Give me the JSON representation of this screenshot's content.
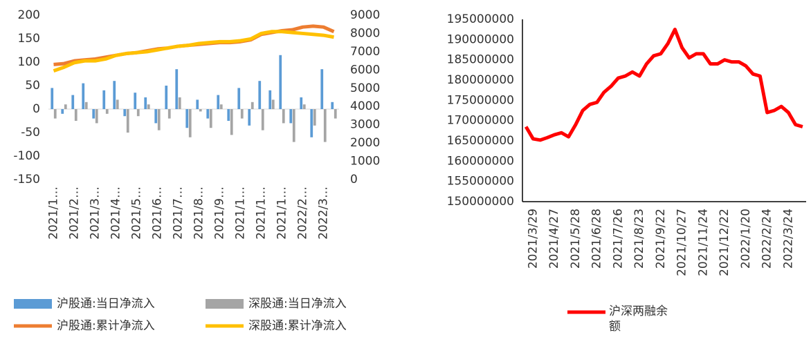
{
  "chart_data": [
    {
      "type": "bar-line",
      "categories": [
        "2021/1…",
        null,
        "2021/2…",
        null,
        "2021/3…",
        null,
        "2021/4…",
        null,
        "2021/5…",
        null,
        "2021/6…",
        null,
        "2021/7…",
        null,
        "2021/8…",
        null,
        "2021/9…",
        null,
        "2021/1…",
        null,
        "2021/1…",
        null,
        "2021/1…",
        null,
        "2022/2…",
        null,
        "2022/3…",
        null
      ],
      "series": [
        {
          "name": "沪股通:当日净流入",
          "kind": "bar",
          "color": "#5b9bd5",
          "values": [
            45,
            -10,
            30,
            55,
            -20,
            40,
            60,
            -15,
            35,
            25,
            -30,
            50,
            85,
            -40,
            20,
            -20,
            30,
            -25,
            45,
            -35,
            60,
            40,
            115,
            -30,
            25,
            -60,
            85,
            15
          ]
        },
        {
          "name": "深股通:当日净流入",
          "kind": "bar",
          "color": "#a5a5a5",
          "values": [
            -20,
            10,
            -25,
            15,
            -30,
            -10,
            20,
            -50,
            -15,
            10,
            -45,
            -20,
            25,
            -60,
            -5,
            -40,
            10,
            -55,
            -20,
            15,
            -45,
            20,
            -30,
            -70,
            10,
            -35,
            -70,
            -20
          ]
        },
        {
          "name": "沪股通:累计净流入",
          "kind": "line",
          "axis": "y2",
          "color": "#ed7d31",
          "values": [
            6300,
            6350,
            6500,
            6550,
            6600,
            6700,
            6800,
            6900,
            6950,
            7050,
            7150,
            7200,
            7300,
            7350,
            7400,
            7450,
            7500,
            7500,
            7550,
            7650,
            7950,
            8050,
            8150,
            8200,
            8350,
            8400,
            8350,
            8100
          ]
        },
        {
          "name": "深股通:累计净流入",
          "kind": "line",
          "axis": "y2",
          "color": "#ffc000",
          "values": [
            5950,
            6150,
            6400,
            6500,
            6500,
            6600,
            6800,
            6900,
            6950,
            7000,
            7100,
            7200,
            7300,
            7350,
            7450,
            7500,
            7550,
            7550,
            7600,
            7700,
            8000,
            8100,
            8100,
            8050,
            8000,
            7950,
            7900,
            7800
          ]
        }
      ],
      "ylim": [
        -150,
        200
      ],
      "yticks": [
        -150,
        -100,
        -50,
        0,
        50,
        100,
        150,
        200
      ],
      "y2lim": [
        0,
        9000
      ],
      "y2ticks": [
        0,
        1000,
        2000,
        3000,
        4000,
        5000,
        6000,
        7000,
        8000,
        9000
      ],
      "grid": false,
      "legend": "bottom"
    },
    {
      "type": "line",
      "categories": [
        null,
        "2021/3/29",
        null,
        null,
        "2021/4/27",
        null,
        null,
        "2021/5/28",
        null,
        null,
        "2021/6/28",
        null,
        null,
        "2021/7/26",
        null,
        null,
        "2021/8/23",
        null,
        null,
        "2021/9/22",
        null,
        null,
        "2021/10/27",
        null,
        null,
        "2021/11/24",
        null,
        null,
        "2021/12/22",
        null,
        null,
        "2022/1/20",
        null,
        null,
        "2022/2/24",
        null,
        null,
        "2022/3/24",
        null,
        null
      ],
      "series": [
        {
          "name": "沪深两融余额",
          "color": "#ff0000",
          "values": [
            168500000,
            165500000,
            165200000,
            165800000,
            166500000,
            167000000,
            166000000,
            169000000,
            172500000,
            174000000,
            174500000,
            177000000,
            178500000,
            180500000,
            181000000,
            182000000,
            181000000,
            184000000,
            186000000,
            186500000,
            189000000,
            192500000,
            188000000,
            185500000,
            186500000,
            186500000,
            184000000,
            184000000,
            185000000,
            184500000,
            184500000,
            183500000,
            181500000,
            181000000,
            172000000,
            172500000,
            173500000,
            172000000,
            169000000,
            168500000
          ]
        }
      ],
      "ylim": [
        150000000,
        195000000
      ],
      "yticks": [
        150000000,
        155000000,
        160000000,
        165000000,
        170000000,
        175000000,
        180000000,
        185000000,
        190000000,
        195000000
      ],
      "grid": false,
      "legend": "bottom"
    }
  ]
}
